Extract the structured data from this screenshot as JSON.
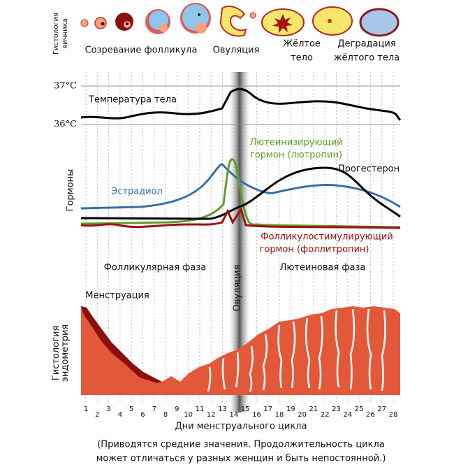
{
  "ovary": {
    "label": [
      "Гистология",
      "яичника"
    ],
    "stages": [
      [
        "Созревание фолликула"
      ],
      [
        "Овуляция"
      ],
      [
        "Жёлтое",
        "тело"
      ],
      [
        "Деградация",
        "жёлтого тела"
      ]
    ]
  },
  "temperature": {
    "label": "Температура тела",
    "ticks": [
      "37°C",
      "36°C"
    ]
  },
  "hormones": {
    "label": "Гормоны",
    "estradiol": "Эстрадиол",
    "lh": [
      "Лютеинизирующий",
      "гормон (лютропин)"
    ],
    "progesterone": "Прогестерон",
    "fsh": [
      "Фолликулостимулирующий",
      "гормон (фоллитропин)"
    ]
  },
  "phases": {
    "follicular": "Фолликулярная фаза",
    "ovulation": "Овуляция",
    "luteal": "Лютеиновая фаза",
    "menstruation": "Менструация"
  },
  "endometrium": {
    "label": [
      "Гистология",
      "эндометрия"
    ]
  },
  "days": [
    1,
    2,
    3,
    4,
    5,
    6,
    7,
    8,
    9,
    10,
    11,
    12,
    13,
    14,
    15,
    16,
    17,
    18,
    19,
    20,
    21,
    22,
    23,
    24,
    25,
    26,
    27,
    28
  ],
  "x_label": "Дни менструального цикла",
  "footnote": [
    "(Приводятся средние значения. Продолжительность цикла",
    "может отличаться у разных женщин и быть непостоянной.)"
  ]
}
